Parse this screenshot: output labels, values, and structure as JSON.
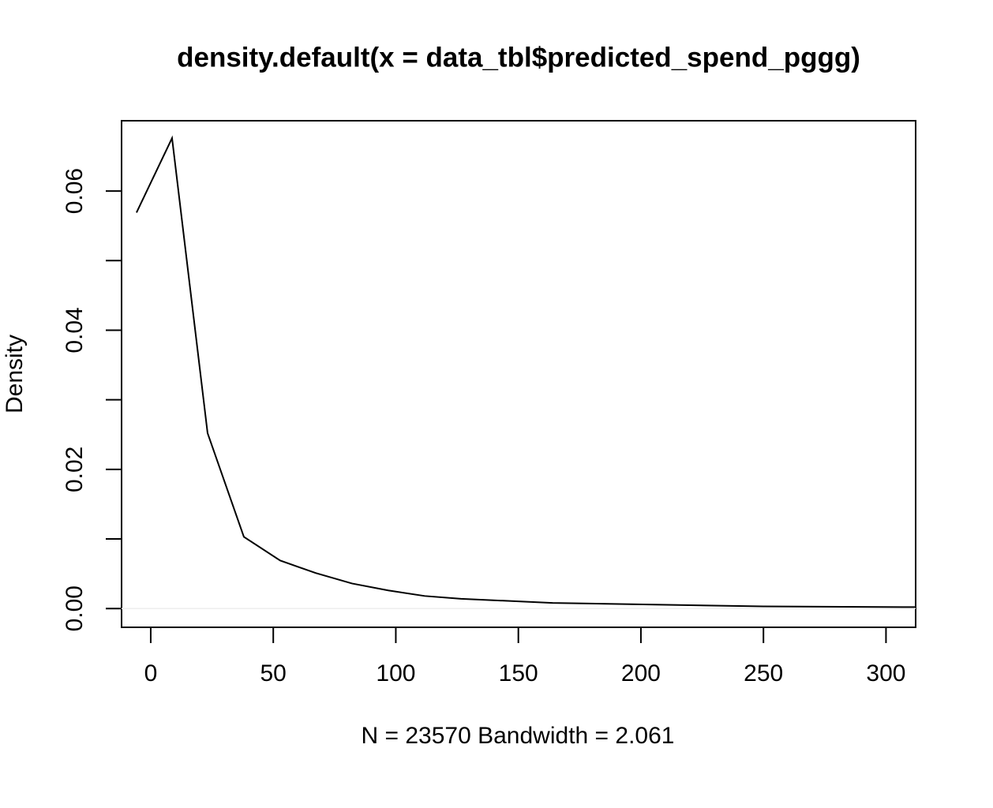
{
  "chart_data": {
    "type": "line",
    "title": "density.default(x = data_tbl$predicted_spend_pggg)",
    "x_label": "N = 23570   Bandwidth = 2.061",
    "y_label": "Density",
    "x": [
      -5.8,
      8.7,
      23.2,
      38.0,
      52.8,
      67.3,
      82.1,
      96.9,
      111.8,
      126.6,
      164,
      250,
      312
    ],
    "series": [
      {
        "color": "#000000",
        "values": [
          0.0569,
          0.0676,
          0.0252,
          0.0103,
          0.0069,
          0.0051,
          0.0036,
          0.0026,
          0.0018,
          0.0014,
          0.0008,
          0.0003,
          0.0002
        ]
      }
    ],
    "xlim": [
      -11.9,
      312.1
    ],
    "ylim": [
      -0.0027,
      0.0701
    ],
    "xticks": [
      0,
      50,
      100,
      150,
      200,
      250,
      300
    ],
    "yticks": [
      {
        "value": 0,
        "label": "0.00"
      },
      {
        "value": 0.02,
        "label": "0.02"
      },
      {
        "value": 0.04,
        "label": "0.04"
      },
      {
        "value": 0.06,
        "label": "0.06"
      }
    ],
    "yminor_ticks": [
      0.01,
      0.03,
      0.05
    ],
    "zero_line": true
  }
}
